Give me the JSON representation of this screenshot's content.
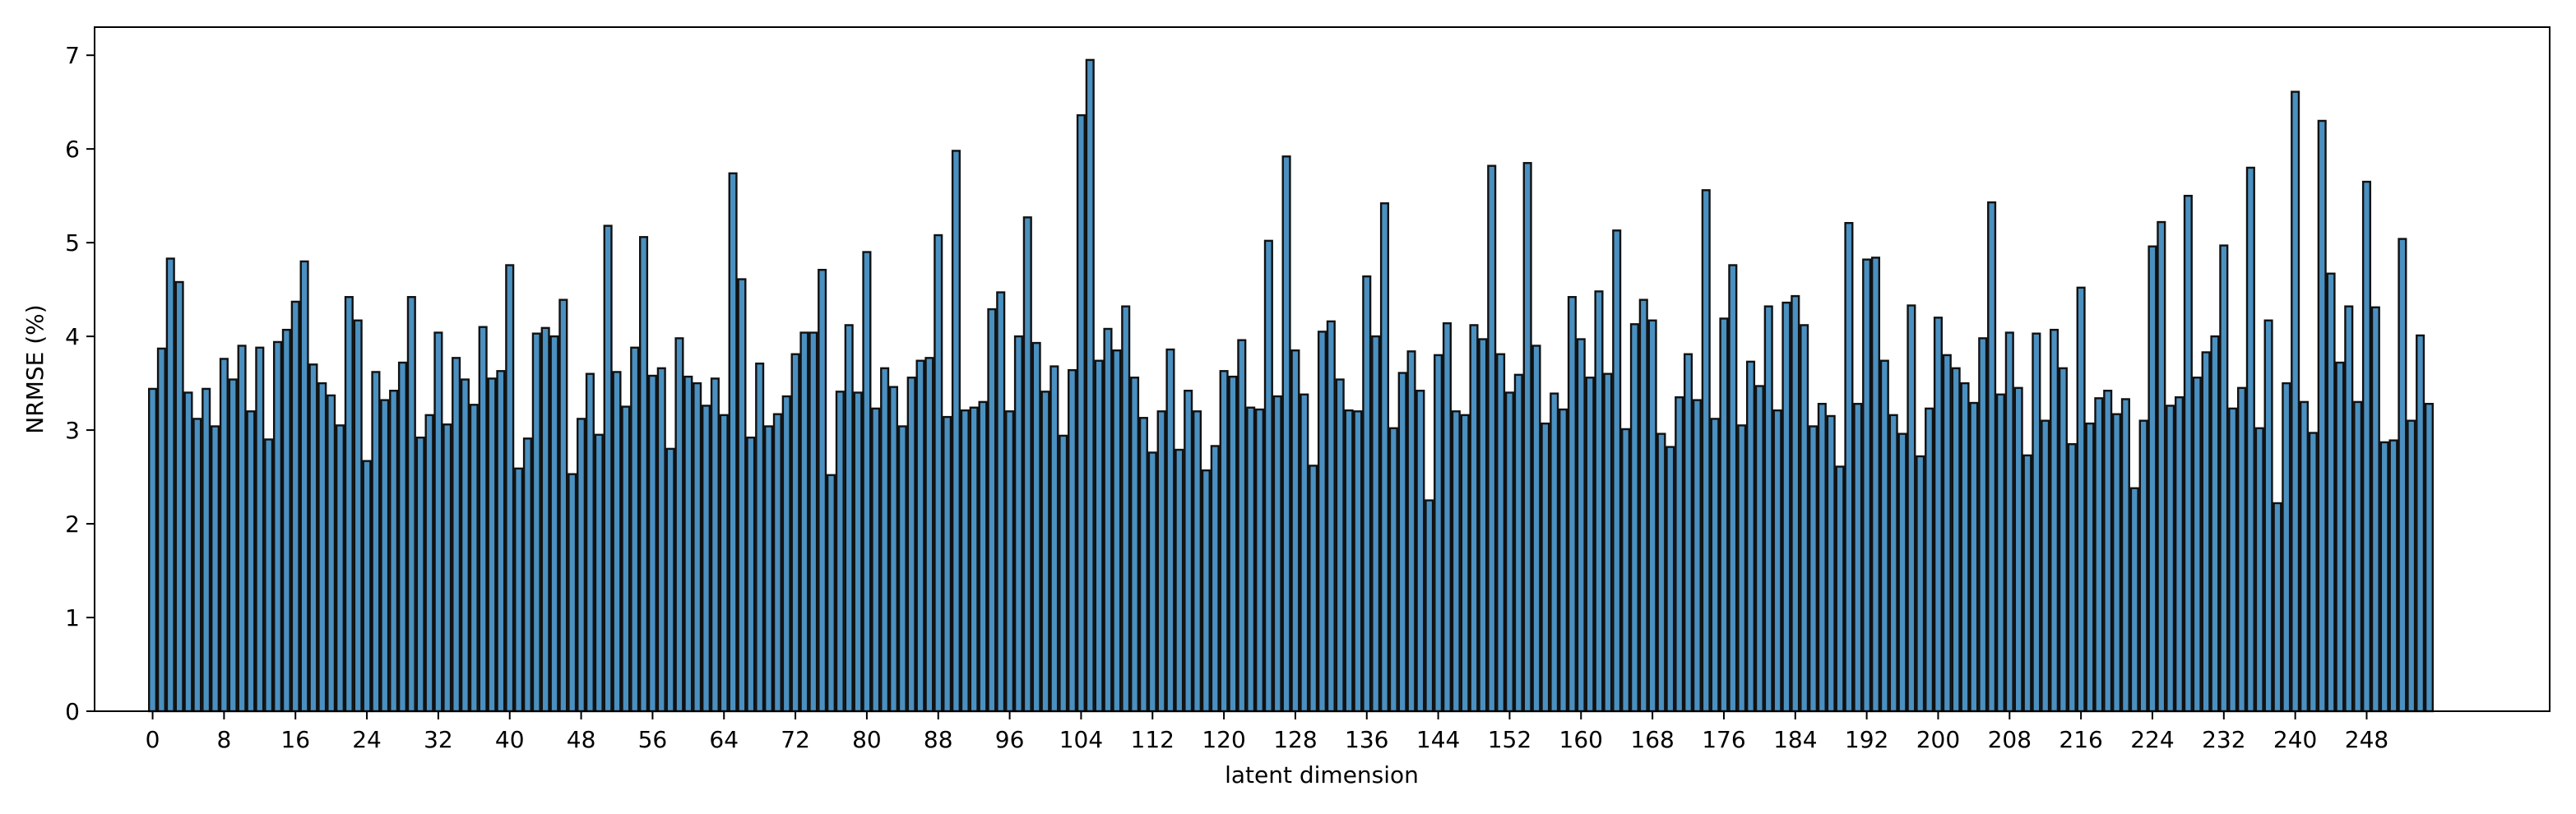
{
  "chart_data": {
    "type": "bar",
    "xlabel": "latent dimension",
    "ylabel": "NRMSE (%)",
    "ylim": [
      0,
      7.3
    ],
    "xlim": [
      -6.5,
      268.5
    ],
    "yticks": [
      "0",
      "1",
      "2",
      "3",
      "4",
      "5",
      "6",
      "7"
    ],
    "xticks": [
      "0",
      "8",
      "16",
      "24",
      "32",
      "40",
      "48",
      "56",
      "64",
      "72",
      "80",
      "88",
      "96",
      "104",
      "112",
      "120",
      "128",
      "136",
      "144",
      "152",
      "160",
      "168",
      "176",
      "184",
      "192",
      "200",
      "208",
      "216",
      "224",
      "232",
      "240",
      "248"
    ],
    "bar_color": "#4a90c0",
    "edge_color": "#111111",
    "grid": false,
    "values": [
      3.44,
      3.87,
      4.83,
      4.58,
      3.4,
      3.12,
      3.44,
      3.04,
      3.76,
      3.54,
      3.9,
      3.2,
      3.88,
      2.9,
      3.94,
      4.07,
      4.37,
      4.8,
      3.7,
      3.5,
      3.37,
      3.05,
      4.42,
      4.17,
      2.67,
      3.62,
      3.32,
      3.42,
      3.72,
      4.42,
      2.92,
      3.16,
      4.04,
      3.06,
      3.77,
      3.54,
      3.27,
      4.1,
      3.55,
      3.63,
      4.76,
      2.59,
      2.91,
      4.03,
      4.09,
      4.0,
      4.39,
      2.53,
      3.12,
      3.6,
      2.95,
      5.18,
      3.62,
      3.25,
      3.88,
      5.06,
      3.58,
      3.66,
      2.8,
      3.98,
      3.57,
      3.5,
      3.26,
      3.55,
      3.16,
      5.74,
      4.61,
      2.92,
      3.71,
      3.04,
      3.17,
      3.36,
      3.81,
      4.04,
      4.04,
      4.71,
      2.52,
      3.41,
      4.12,
      3.4,
      4.9,
      3.23,
      3.66,
      3.46,
      3.04,
      3.56,
      3.74,
      3.77,
      5.08,
      3.14,
      5.98,
      3.21,
      3.24,
      3.3,
      4.29,
      4.47,
      3.2,
      4.0,
      5.27,
      3.93,
      3.41,
      3.68,
      2.94,
      3.64,
      6.36,
      6.95,
      3.74,
      4.08,
      3.85,
      4.32,
      3.56,
      3.13,
      2.76,
      3.2,
      3.86,
      2.79,
      3.42,
      3.2,
      2.57,
      2.83,
      3.63,
      3.57,
      3.96,
      3.24,
      3.22,
      5.02,
      3.36,
      5.92,
      3.85,
      3.38,
      2.62,
      4.05,
      4.16,
      3.54,
      3.21,
      3.2,
      4.64,
      4.0,
      5.42,
      3.02,
      3.61,
      3.84,
      3.42,
      2.25,
      3.8,
      4.14,
      3.2,
      3.16,
      4.12,
      3.97,
      5.82,
      3.81,
      3.4,
      3.59,
      5.85,
      3.9,
      3.07,
      3.39,
      3.22,
      4.42,
      3.97,
      3.56,
      4.48,
      3.6,
      5.13,
      3.01,
      4.13,
      4.39,
      4.17,
      2.96,
      2.82,
      3.35,
      3.81,
      3.32,
      5.56,
      3.12,
      4.19,
      4.76,
      3.05,
      3.73,
      3.47,
      4.32,
      3.21,
      4.36,
      4.43,
      4.12,
      3.04,
      3.28,
      3.15,
      2.61,
      5.21,
      3.28,
      4.82,
      4.84,
      3.74,
      3.16,
      2.96,
      4.33,
      2.72,
      3.23,
      4.2,
      3.8,
      3.66,
      3.5,
      3.29,
      3.98,
      5.43,
      3.38,
      4.04,
      3.45,
      2.73,
      4.03,
      3.1,
      4.07,
      3.66,
      2.85,
      4.52,
      3.07,
      3.34,
      3.42,
      3.17,
      3.33,
      2.38,
      3.1,
      4.96,
      5.22,
      3.26,
      3.35,
      5.5,
      3.56,
      3.83,
      4.0,
      4.97,
      3.23,
      3.45,
      5.8,
      3.02,
      4.17,
      2.22,
      3.5,
      6.61,
      3.3,
      2.97,
      6.3,
      4.67,
      3.72,
      4.32,
      3.3,
      5.65,
      4.31,
      2.87,
      2.89,
      5.04,
      3.1,
      4.01,
      3.28
    ]
  }
}
